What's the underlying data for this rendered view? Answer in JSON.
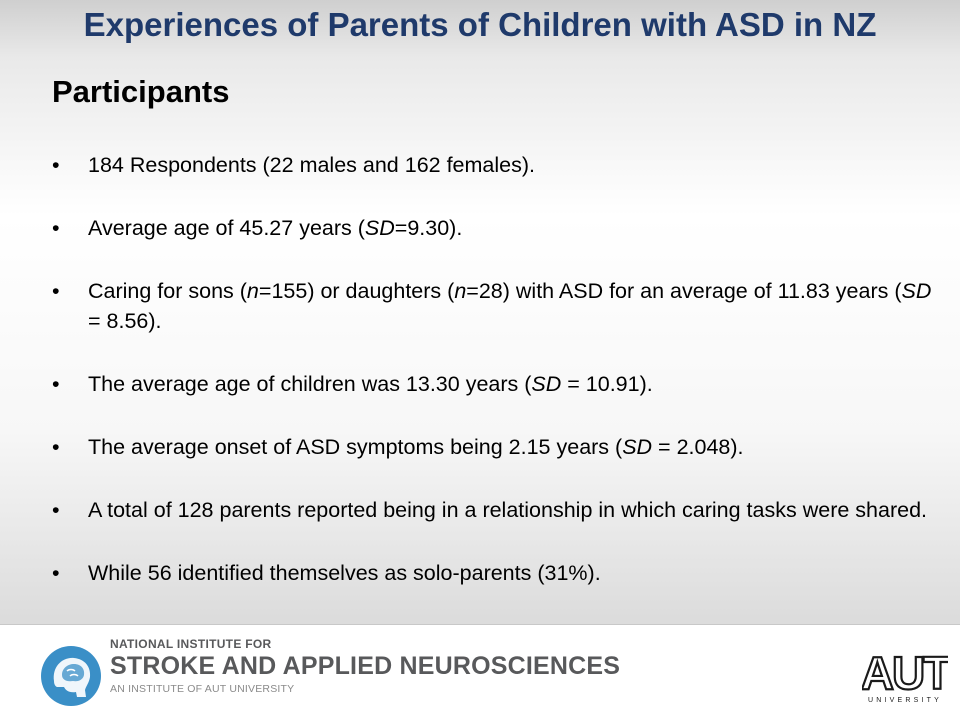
{
  "slide": {
    "title": "Experiences of Parents of Children with ASD in NZ",
    "section_heading": "Participants",
    "bullet_symbol": "•",
    "bullets": [
      "184 Respondents (22 males and 162 females).",
      "Average age of 45.27 years (SD=9.30).",
      "Caring for sons (n=155) or daughters (n=28) with ASD for an average of 11.83 years (SD = 8.56).",
      "The average age of children was 13.30 years (SD = 10.91).",
      "The average onset of ASD symptoms being 2.15 years (SD = 2.048).",
      "A total of 128 parents reported being in a relationship in which caring tasks were shared.",
      "While 56 identified themselves as solo-parents (31%)."
    ]
  },
  "footer": {
    "institute_line1": "NATIONAL INSTITUTE FOR",
    "institute_line2": "STROKE AND APPLIED NEUROSCIENCES",
    "institute_line3": "AN INSTITUTE OF AUT UNIVERSITY",
    "university_logo_text": "AUT",
    "university_logo_sub": "UNIVERSITY",
    "colors": {
      "title": "#1f3a6b",
      "brain_logo": "#3a8fc7",
      "logo_text": "#58595b"
    }
  }
}
